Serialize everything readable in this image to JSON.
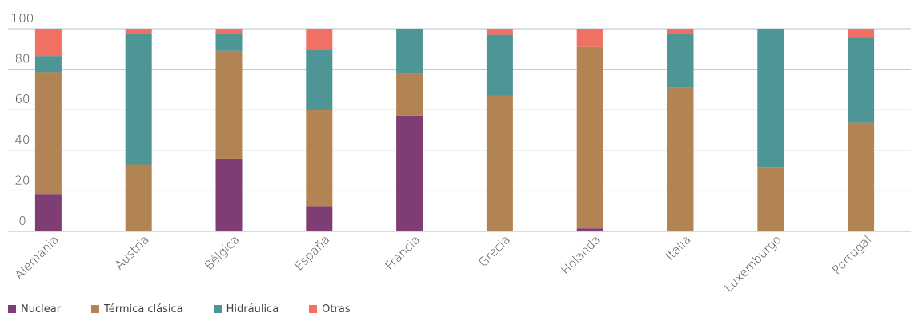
{
  "chart_data": {
    "type": "bar",
    "stacked": true,
    "categories": [
      "Alemania",
      "Austria",
      "Bélgica",
      "España",
      "Francia",
      "Grecia",
      "Holanda",
      "Italia",
      "Luxemburgo",
      "Portugal"
    ],
    "series": [
      {
        "name": "Nuclear",
        "color": "#7f3e73",
        "values": [
          18.5,
          0,
          36,
          12.5,
          57,
          0,
          1.5,
          0,
          0,
          0
        ]
      },
      {
        "name": "Térmica clásica",
        "color": "#b28454",
        "values": [
          60,
          33,
          53,
          47.5,
          21,
          67,
          89.5,
          71,
          31.5,
          53.5
        ]
      },
      {
        "name": "Hidráulica",
        "color": "#4e9595",
        "values": [
          8,
          64.5,
          8.5,
          29.5,
          22,
          30,
          0,
          26.5,
          68.5,
          42.5
        ]
      },
      {
        "name": "Otras",
        "color": "#f07163",
        "values": [
          13.5,
          2.5,
          2.5,
          10.5,
          0,
          3,
          9,
          2.5,
          0,
          4
        ]
      }
    ],
    "yticks": [
      "0",
      "20",
      "40",
      "60",
      "80",
      "100"
    ],
    "ylim": [
      0,
      100
    ],
    "grid": true,
    "legend_position": "bottom-left",
    "title": "",
    "xlabel": "",
    "ylabel": ""
  }
}
